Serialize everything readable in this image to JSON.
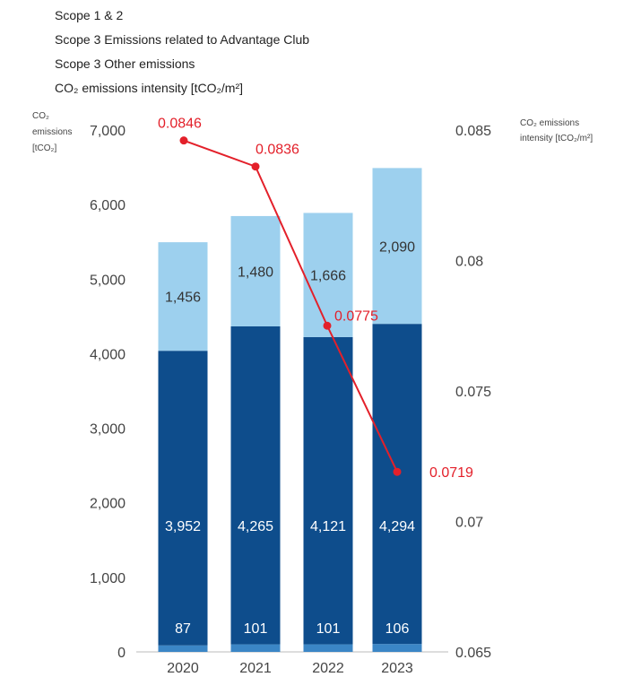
{
  "legend": [
    {
      "label": "Scope 1 & 2"
    },
    {
      "label": "Scope 3 Emissions related to Advantage Club"
    },
    {
      "label": "Scope 3 Other emissions"
    },
    {
      "label": "CO₂ emissions intensity [tCO₂/m²]"
    }
  ],
  "chart_data": {
    "type": "bar",
    "stacked": true,
    "categories": [
      "2020",
      "2021",
      "2022",
      "2023"
    ],
    "series": [
      {
        "name": "Scope 1 & 2",
        "values": [
          87,
          101,
          101,
          106
        ],
        "color": "#3b86c6"
      },
      {
        "name": "Scope 3 Emissions related to Advantage Club",
        "values": [
          3952,
          4265,
          4121,
          4294
        ],
        "color": "#0e4d8c"
      },
      {
        "name": "Scope 3 Other emissions",
        "values": [
          1456,
          1480,
          1666,
          2090
        ],
        "color": "#9dd0ee"
      }
    ],
    "line_series": {
      "name": "CO₂ emissions intensity [tCO₂/m²]",
      "values": [
        0.0846,
        0.0836,
        0.0775,
        0.0719
      ],
      "color": "#e3202a",
      "axis": "right"
    },
    "y_left": {
      "label": [
        "CO₂",
        "emissions",
        "[tCO₂]"
      ],
      "ylim": [
        0,
        7000
      ],
      "ticks": [
        0,
        1000,
        2000,
        3000,
        4000,
        5000,
        6000,
        7000
      ],
      "tick_labels": [
        "0",
        "1,000",
        "2,000",
        "3,000",
        "4,000",
        "5,000",
        "6,000",
        "7,000"
      ]
    },
    "y_right": {
      "label": [
        "CO₂ emissions",
        "intensity [tCO₂/m²]"
      ],
      "ylim": [
        0.065,
        0.085
      ],
      "ticks": [
        0.065,
        0.07,
        0.075,
        0.08,
        0.085
      ],
      "tick_labels": [
        "0.065",
        "0.07",
        "0.075",
        "0.08",
        "0.085"
      ]
    },
    "bar_labels": [
      [
        "87",
        "3,952",
        "1,456"
      ],
      [
        "101",
        "4,265",
        "1,480"
      ],
      [
        "101",
        "4,121",
        "1,666"
      ],
      [
        "106",
        "4,294",
        "2,090"
      ]
    ],
    "line_labels": [
      "0.0846",
      "0.0836",
      "0.0775",
      "0.0719"
    ],
    "grid": false,
    "legend_position": "top-left"
  }
}
